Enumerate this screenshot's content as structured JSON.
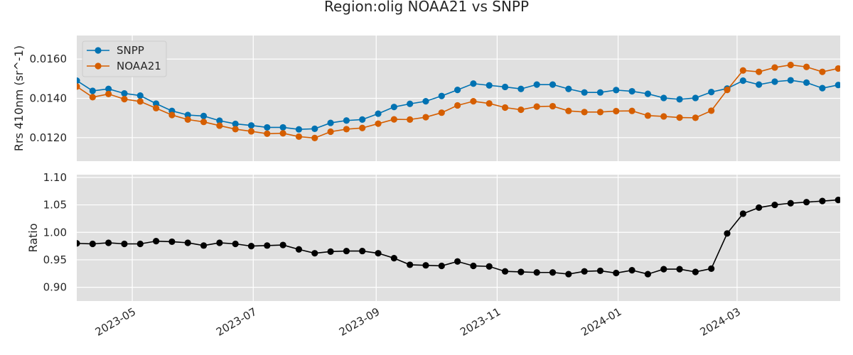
{
  "title": "Region:olig NOAA21 vs SNPP",
  "colors": {
    "panel_bg": "#e0e0e0",
    "grid": "#ffffff",
    "snpp": "#0072b2",
    "noaa21": "#d55e00",
    "ratio": "#000000"
  },
  "chart_data": [
    {
      "type": "line",
      "title": "",
      "xlabel": "",
      "ylabel": "Rrs 410nm (sr^-1)",
      "xlim": [
        "2023-04-03",
        "2024-04-22"
      ],
      "ylim": [
        0.0108,
        0.0172
      ],
      "yticks": [
        0.012,
        0.014,
        0.016
      ],
      "ytick_labels": [
        "0.0120",
        "0.0140",
        "0.0160"
      ],
      "grid": true,
      "legend_position": "top-left",
      "x": [
        "2023-04-03",
        "2023-04-11",
        "2023-04-19",
        "2023-04-27",
        "2023-05-05",
        "2023-05-13",
        "2023-05-21",
        "2023-05-29",
        "2023-06-06",
        "2023-06-14",
        "2023-06-22",
        "2023-06-30",
        "2023-07-08",
        "2023-07-16",
        "2023-07-24",
        "2023-08-01",
        "2023-08-09",
        "2023-08-17",
        "2023-08-25",
        "2023-09-02",
        "2023-09-10",
        "2023-09-18",
        "2023-09-26",
        "2023-10-04",
        "2023-10-12",
        "2023-10-20",
        "2023-10-28",
        "2023-11-05",
        "2023-11-13",
        "2023-11-21",
        "2023-11-29",
        "2023-12-07",
        "2023-12-15",
        "2023-12-23",
        "2023-12-31",
        "2024-01-08",
        "2024-01-16",
        "2024-01-24",
        "2024-02-01",
        "2024-02-09",
        "2024-02-17",
        "2024-02-25",
        "2024-03-04",
        "2024-03-12",
        "2024-03-20",
        "2024-03-28",
        "2024-04-05",
        "2024-04-13",
        "2024-04-21"
      ],
      "series": [
        {
          "name": "SNPP",
          "color": "#0072b2",
          "values": [
            0.0149,
            0.01438,
            0.01448,
            0.01425,
            0.01414,
            0.01373,
            0.01336,
            0.01315,
            0.0131,
            0.01286,
            0.0127,
            0.01262,
            0.01252,
            0.01252,
            0.01242,
            0.01245,
            0.01275,
            0.01287,
            0.01292,
            0.01322,
            0.01356,
            0.01372,
            0.01385,
            0.01412,
            0.01443,
            0.01475,
            0.01466,
            0.01458,
            0.01448,
            0.0147,
            0.0147,
            0.01448,
            0.0143,
            0.0143,
            0.01442,
            0.01436,
            0.01423,
            0.01402,
            0.01395,
            0.01402,
            0.01432,
            0.0145,
            0.0149,
            0.0147,
            0.01485,
            0.01492,
            0.0148,
            0.01452,
            0.01468
          ]
        },
        {
          "name": "NOAA21",
          "color": "#d55e00",
          "values": [
            0.0146,
            0.01406,
            0.01422,
            0.01396,
            0.01384,
            0.0135,
            0.01315,
            0.01292,
            0.0128,
            0.01261,
            0.01243,
            0.01232,
            0.0122,
            0.01222,
            0.01205,
            0.01198,
            0.0123,
            0.01243,
            0.01249,
            0.01271,
            0.01293,
            0.01292,
            0.01304,
            0.01327,
            0.01364,
            0.01385,
            0.01374,
            0.01353,
            0.01342,
            0.01358,
            0.0136,
            0.01336,
            0.0133,
            0.0133,
            0.01335,
            0.01336,
            0.01312,
            0.01308,
            0.01302,
            0.01301,
            0.01337,
            0.01443,
            0.01542,
            0.01535,
            0.01557,
            0.0157,
            0.0156,
            0.01535,
            0.01552
          ]
        }
      ]
    },
    {
      "type": "line",
      "title": "",
      "xlabel": "",
      "ylabel": "Ratio",
      "xlim": [
        "2023-04-03",
        "2024-04-22"
      ],
      "ylim": [
        0.875,
        1.105
      ],
      "yticks": [
        0.9,
        0.95,
        1.0,
        1.05,
        1.1
      ],
      "ytick_labels": [
        "0.90",
        "0.95",
        "1.00",
        "1.05",
        "1.10"
      ],
      "xtick_dates": [
        "2023-05-01",
        "2023-07-01",
        "2023-09-01",
        "2023-11-01",
        "2024-01-01",
        "2024-03-01"
      ],
      "xtick_labels": [
        "2023-05",
        "2023-07",
        "2023-09",
        "2023-11",
        "2024-01",
        "2024-03"
      ],
      "grid": true,
      "x": [
        "2023-04-03",
        "2023-04-11",
        "2023-04-19",
        "2023-04-27",
        "2023-05-05",
        "2023-05-13",
        "2023-05-21",
        "2023-05-29",
        "2023-06-06",
        "2023-06-14",
        "2023-06-22",
        "2023-06-30",
        "2023-07-08",
        "2023-07-16",
        "2023-07-24",
        "2023-08-01",
        "2023-08-09",
        "2023-08-17",
        "2023-08-25",
        "2023-09-02",
        "2023-09-10",
        "2023-09-18",
        "2023-09-26",
        "2023-10-04",
        "2023-10-12",
        "2023-10-20",
        "2023-10-28",
        "2023-11-05",
        "2023-11-13",
        "2023-11-21",
        "2023-11-29",
        "2023-12-07",
        "2023-12-15",
        "2023-12-23",
        "2023-12-31",
        "2024-01-08",
        "2024-01-16",
        "2024-01-24",
        "2024-02-01",
        "2024-02-09",
        "2024-02-17",
        "2024-02-25",
        "2024-03-04",
        "2024-03-12",
        "2024-03-20",
        "2024-03-28",
        "2024-04-05",
        "2024-04-13",
        "2024-04-21"
      ],
      "series": [
        {
          "color": "#000000",
          "values": [
            0.98,
            0.979,
            0.981,
            0.979,
            0.979,
            0.984,
            0.983,
            0.981,
            0.976,
            0.981,
            0.979,
            0.975,
            0.976,
            0.977,
            0.969,
            0.962,
            0.965,
            0.966,
            0.966,
            0.962,
            0.953,
            0.941,
            0.94,
            0.939,
            0.947,
            0.939,
            0.938,
            0.929,
            0.928,
            0.927,
            0.927,
            0.924,
            0.929,
            0.93,
            0.926,
            0.931,
            0.924,
            0.933,
            0.933,
            0.928,
            0.934,
            0.998,
            1.034,
            1.045,
            1.05,
            1.053,
            1.055,
            1.057,
            1.059
          ]
        }
      ]
    }
  ]
}
